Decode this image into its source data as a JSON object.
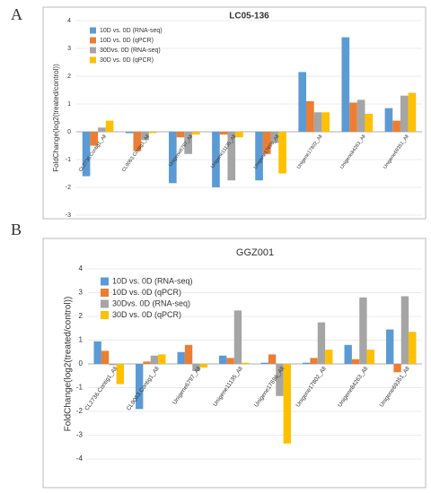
{
  "chart_data": [
    {
      "type": "bar",
      "panel_label": "A",
      "title": "LC05-136",
      "y_label": "FoldChange(log2(treated/control))",
      "categories": [
        "CL2736.Contig1_All",
        "CL9063.Contig1_All",
        "Unigene6797_All",
        "Unigene11135_All",
        "Unigene17696_All",
        "Unigene17802_All",
        "Unigene84263_All",
        "Unigene69351_All"
      ],
      "series": [
        {
          "name": "10D vs. 0D (RNA-seq)",
          "color": "#5b9bd5",
          "values": [
            -1.6,
            -0.05,
            -1.85,
            -2.0,
            -1.75,
            2.15,
            3.4,
            0.85
          ]
        },
        {
          "name": "10D vs. 0D (qPCR)",
          "color": "#ed7d31",
          "values": [
            -0.5,
            -0.7,
            -0.2,
            -0.1,
            -0.8,
            1.1,
            1.05,
            0.4
          ]
        },
        {
          "name": "30Dvs. 0D (RNA-seq)",
          "color": "#a5a5a5",
          "values": [
            0.15,
            -0.3,
            -0.8,
            -1.75,
            -0.4,
            0.7,
            1.15,
            1.3
          ]
        },
        {
          "name": "30D vs. 0D (qPCR)",
          "color": "#ffc000",
          "values": [
            0.4,
            -0.05,
            -0.1,
            -0.2,
            -1.5,
            0.7,
            0.65,
            1.4
          ]
        }
      ],
      "ylim": [
        -3,
        4
      ],
      "yticks": [
        -3,
        -2,
        -1,
        0,
        1,
        2,
        3,
        4
      ],
      "legend": "upper left"
    },
    {
      "type": "bar",
      "panel_label": "B",
      "title": "GGZ001",
      "y_label": "FoldChange(log2(treated/control))",
      "categories": [
        "CL2736.Contig1_All",
        "CL9063.Contig1_All",
        "Unigene6797_All",
        "Unigene11135_All",
        "Unigene17696_All",
        "Unigene17802_All",
        "Unigene84263_All",
        "Unigene69351_All"
      ],
      "series": [
        {
          "name": "10D vs. 0D (RNA-seq)",
          "color": "#5b9bd5",
          "values": [
            0.95,
            -1.9,
            0.5,
            0.35,
            0.05,
            0.05,
            0.8,
            1.45
          ]
        },
        {
          "name": "10D vs. 0D (qPCR)",
          "color": "#ed7d31",
          "values": [
            0.55,
            0.1,
            0.8,
            0.25,
            0.4,
            0.25,
            0.2,
            -0.35
          ]
        },
        {
          "name": "30Dvs. 0D (RNA-seq)",
          "color": "#a5a5a5",
          "values": [
            -0.05,
            0.35,
            -0.3,
            2.25,
            -1.35,
            1.75,
            2.8,
            2.85
          ]
        },
        {
          "name": "30D vs. 0D (qPCR)",
          "color": "#ffc000",
          "values": [
            -0.85,
            0.4,
            -0.15,
            0.05,
            -3.35,
            0.6,
            0.6,
            1.35
          ]
        }
      ],
      "ylim": [
        -4,
        4
      ],
      "yticks": [
        -4,
        -3,
        -2,
        -1,
        0,
        1,
        2,
        3,
        4
      ],
      "legend": "upper left"
    }
  ]
}
